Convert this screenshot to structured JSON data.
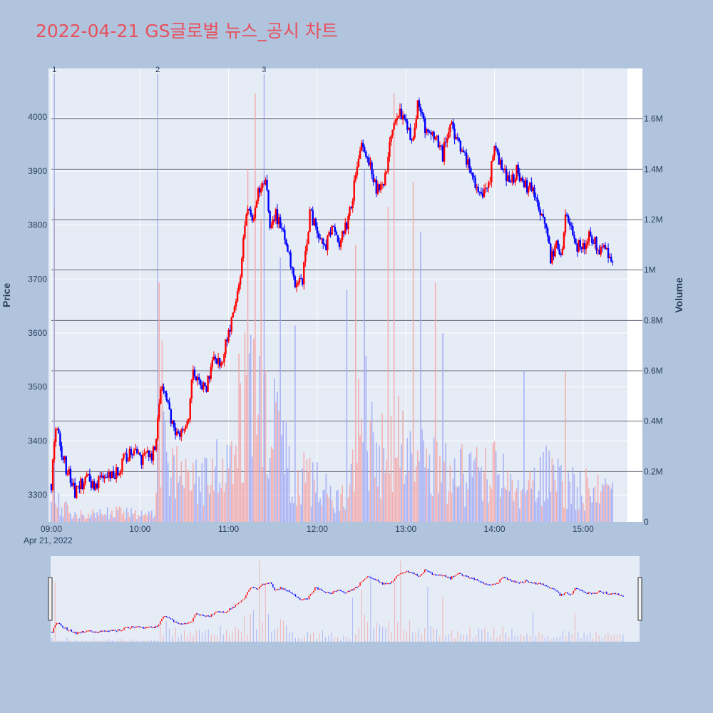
{
  "chart_data": {
    "type": "candlestick",
    "title": "2022-04-21 GS글로벌 뉴스_공시 차트",
    "date_label": "Apr 21, 2022",
    "price_axis": {
      "label": "Price",
      "range": [
        3250,
        4090
      ],
      "ticks": [
        3300,
        3400,
        3500,
        3600,
        3700,
        3800,
        3900,
        4000
      ]
    },
    "volume_axis": {
      "label": "Volume",
      "range": [
        0,
        1800000
      ],
      "ticks": [
        0,
        200000,
        400000,
        600000,
        800000,
        1000000,
        1200000,
        1400000,
        1600000
      ],
      "tick_labels": [
        "0",
        "0.2M",
        "0.4M",
        "0.6M",
        "0.8M",
        "1M",
        "1.2M",
        "1.4M",
        "1.6M"
      ]
    },
    "time_axis": {
      "range": [
        "09:00",
        "15:30"
      ],
      "ticks": [
        "09:00",
        "10:00",
        "11:00",
        "12:00",
        "13:00",
        "14:00",
        "15:00"
      ]
    },
    "news_markers": [
      {
        "label": "1",
        "time": "09:02"
      },
      {
        "label": "2",
        "time": "10:12"
      },
      {
        "label": "3",
        "time": "11:24"
      }
    ],
    "price_path": [
      [
        "09:00",
        3320
      ],
      [
        "09:02",
        3400
      ],
      [
        "09:04",
        3425
      ],
      [
        "09:07",
        3380
      ],
      [
        "09:10",
        3350
      ],
      [
        "09:13",
        3330
      ],
      [
        "09:16",
        3300
      ],
      [
        "09:20",
        3320
      ],
      [
        "09:25",
        3330
      ],
      [
        "09:30",
        3320
      ],
      [
        "09:35",
        3330
      ],
      [
        "09:40",
        3335
      ],
      [
        "09:45",
        3340
      ],
      [
        "09:50",
        3370
      ],
      [
        "09:55",
        3380
      ],
      [
        "10:00",
        3365
      ],
      [
        "10:05",
        3370
      ],
      [
        "10:10",
        3380
      ],
      [
        "10:12",
        3450
      ],
      [
        "10:15",
        3500
      ],
      [
        "10:18",
        3470
      ],
      [
        "10:22",
        3430
      ],
      [
        "10:26",
        3410
      ],
      [
        "10:30",
        3430
      ],
      [
        "10:33",
        3450
      ],
      [
        "10:36",
        3540
      ],
      [
        "10:40",
        3510
      ],
      [
        "10:45",
        3500
      ],
      [
        "10:50",
        3560
      ],
      [
        "10:55",
        3540
      ],
      [
        "11:00",
        3600
      ],
      [
        "11:05",
        3650
      ],
      [
        "11:08",
        3700
      ],
      [
        "11:10",
        3780
      ],
      [
        "11:13",
        3830
      ],
      [
        "11:16",
        3800
      ],
      [
        "11:20",
        3870
      ],
      [
        "11:25",
        3880
      ],
      [
        "11:28",
        3800
      ],
      [
        "11:32",
        3820
      ],
      [
        "11:36",
        3790
      ],
      [
        "11:40",
        3760
      ],
      [
        "11:45",
        3680
      ],
      [
        "11:50",
        3700
      ],
      [
        "11:55",
        3820
      ],
      [
        "12:00",
        3790
      ],
      [
        "12:05",
        3760
      ],
      [
        "12:10",
        3790
      ],
      [
        "12:15",
        3770
      ],
      [
        "12:20",
        3800
      ],
      [
        "12:25",
        3870
      ],
      [
        "12:30",
        3940
      ],
      [
        "12:35",
        3920
      ],
      [
        "12:40",
        3870
      ],
      [
        "12:45",
        3880
      ],
      [
        "12:50",
        3960
      ],
      [
        "12:55",
        4010
      ],
      [
        "13:00",
        3980
      ],
      [
        "13:05",
        3960
      ],
      [
        "13:08",
        4020
      ],
      [
        "13:12",
        3990
      ],
      [
        "13:16",
        3960
      ],
      [
        "13:20",
        3960
      ],
      [
        "13:25",
        3930
      ],
      [
        "13:30",
        3990
      ],
      [
        "13:35",
        3960
      ],
      [
        "13:40",
        3930
      ],
      [
        "13:45",
        3900
      ],
      [
        "13:50",
        3850
      ],
      [
        "13:55",
        3860
      ],
      [
        "14:00",
        3940
      ],
      [
        "14:05",
        3910
      ],
      [
        "14:10",
        3880
      ],
      [
        "14:15",
        3900
      ],
      [
        "14:20",
        3870
      ],
      [
        "14:25",
        3870
      ],
      [
        "14:30",
        3840
      ],
      [
        "14:35",
        3790
      ],
      [
        "14:38",
        3740
      ],
      [
        "14:42",
        3760
      ],
      [
        "14:45",
        3740
      ],
      [
        "14:48",
        3820
      ],
      [
        "14:52",
        3790
      ],
      [
        "14:56",
        3760
      ],
      [
        "15:00",
        3760
      ],
      [
        "15:05",
        3780
      ],
      [
        "15:10",
        3760
      ],
      [
        "15:15",
        3750
      ],
      [
        "15:20",
        3740
      ]
    ],
    "volume_profile": [
      [
        "09:00",
        0.25
      ],
      [
        "09:05",
        0.12
      ],
      [
        "09:15",
        0.04
      ],
      [
        "09:50",
        0.06
      ],
      [
        "10:10",
        0.05
      ],
      [
        "10:13",
        0.5
      ],
      [
        "10:20",
        0.3
      ],
      [
        "10:35",
        0.22
      ],
      [
        "11:00",
        0.35
      ],
      [
        "11:12",
        0.8
      ],
      [
        "11:20",
        0.65
      ],
      [
        "11:30",
        0.55
      ],
      [
        "11:45",
        0.3
      ],
      [
        "12:00",
        0.22
      ],
      [
        "12:15",
        0.12
      ],
      [
        "12:25",
        0.3
      ],
      [
        "12:30",
        0.75
      ],
      [
        "12:40",
        0.35
      ],
      [
        "12:50",
        0.55
      ],
      [
        "13:00",
        0.4
      ],
      [
        "13:15",
        0.35
      ],
      [
        "13:40",
        0.28
      ],
      [
        "14:00",
        0.3
      ],
      [
        "14:20",
        0.15
      ],
      [
        "14:35",
        0.3
      ],
      [
        "14:50",
        0.22
      ],
      [
        "15:05",
        0.2
      ],
      [
        "15:20",
        0.2
      ]
    ],
    "volume_spikes": [
      [
        "09:02",
        1.25
      ],
      [
        "10:13",
        0.95
      ],
      [
        "10:15",
        0.72
      ],
      [
        "11:13",
        1.4
      ],
      [
        "11:18",
        1.7
      ],
      [
        "11:22",
        1.2
      ],
      [
        "11:35",
        1.05
      ],
      [
        "11:45",
        0.78
      ],
      [
        "12:20",
        0.92
      ],
      [
        "12:26",
        1.1
      ],
      [
        "12:32",
        1.4
      ],
      [
        "12:48",
        1.25
      ],
      [
        "12:52",
        1.7
      ],
      [
        "13:05",
        1.35
      ],
      [
        "13:10",
        1.15
      ],
      [
        "13:20",
        0.95
      ],
      [
        "13:25",
        0.75
      ],
      [
        "14:20",
        0.6
      ],
      [
        "14:48",
        0.6
      ],
      [
        "15:22",
        0.65
      ]
    ],
    "colors": {
      "up": "#ff0000",
      "down": "#0000ff",
      "up_volume": "#f4a4a4",
      "down_volume": "#9fa8f5",
      "plot_bg": "#e5ecf6",
      "paper_bg": "#b0c4de",
      "title": "#e8505b"
    }
  }
}
